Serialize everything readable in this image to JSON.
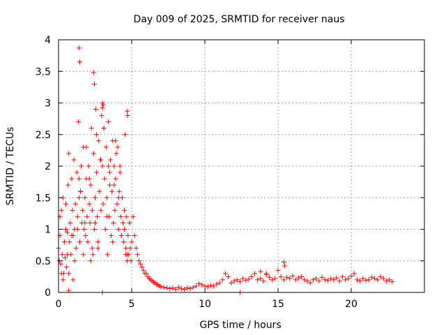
{
  "chart_data": {
    "type": "scatter",
    "title": "Day 009 of 2025, SRMTID for receiver naus",
    "xlabel": "GPS time / hours",
    "ylabel": "SRMTID / TECUs",
    "xlim": [
      0,
      25
    ],
    "ylim": [
      0,
      4
    ],
    "x_ticks": [
      0,
      5,
      10,
      15,
      20
    ],
    "x_tick_labels": [
      "0",
      "5",
      "10",
      "15",
      "20"
    ],
    "y_ticks": [
      0,
      0.5,
      1,
      1.5,
      2,
      2.5,
      3,
      3.5,
      4
    ],
    "y_tick_labels": [
      "0",
      "0.5",
      "1",
      "1.5",
      "2",
      "2.5",
      "3",
      "3.5",
      "4"
    ],
    "grid": true,
    "marker": "plus",
    "series": [
      {
        "name": "SRMTID",
        "color": "#ff0000",
        "x": [
          0.0,
          0.05,
          0.1,
          0.15,
          0.2,
          0.25,
          0.3,
          0.35,
          0.4,
          0.45,
          0.5,
          0.55,
          0.6,
          0.65,
          0.7,
          0.75,
          0.8,
          0.85,
          0.9,
          0.95,
          1.0,
          1.05,
          1.1,
          1.15,
          1.2,
          1.25,
          1.3,
          1.35,
          1.4,
          1.45,
          1.5,
          1.55,
          1.6,
          1.65,
          1.7,
          1.75,
          1.8,
          1.85,
          1.9,
          1.95,
          2.0,
          2.05,
          2.1,
          2.15,
          2.2,
          2.25,
          2.3,
          2.35,
          2.4,
          2.45,
          2.5,
          2.55,
          2.6,
          2.65,
          2.7,
          2.75,
          2.8,
          2.85,
          2.9,
          2.95,
          3.0,
          3.05,
          3.1,
          3.15,
          3.2,
          3.25,
          3.3,
          3.35,
          3.4,
          3.45,
          3.5,
          3.55,
          3.6,
          3.65,
          3.7,
          3.75,
          3.8,
          3.85,
          3.9,
          3.95,
          4.0,
          4.05,
          4.1,
          4.15,
          4.2,
          4.25,
          4.3,
          4.35,
          4.4,
          4.45,
          4.5,
          4.55,
          4.6,
          4.65,
          4.7,
          4.75,
          4.8,
          4.85,
          4.9,
          4.95,
          5.0,
          5.1,
          5.2,
          5.3,
          5.4,
          5.5,
          5.6,
          5.7,
          5.8,
          5.9,
          6.0,
          6.1,
          6.2,
          6.3,
          6.4,
          6.5,
          6.6,
          6.7,
          6.8,
          6.9,
          7.0,
          7.2,
          7.4,
          7.6,
          7.8,
          8.0,
          8.2,
          8.4,
          8.6,
          8.8,
          9.0,
          9.2,
          9.4,
          9.6,
          9.8,
          10.0,
          10.2,
          10.4,
          10.6,
          10.8,
          11.0,
          11.2,
          11.4,
          11.6,
          11.8,
          12.0,
          12.2,
          12.4,
          12.6,
          12.8,
          13.0,
          13.2,
          13.4,
          13.6,
          13.8,
          14.0,
          14.2,
          14.4,
          14.6,
          14.8,
          15.0,
          15.2,
          15.4,
          15.6,
          15.8,
          16.0,
          16.2,
          16.4,
          16.6,
          16.8,
          17.0,
          17.2,
          17.4,
          17.6,
          17.8,
          18.0,
          18.2,
          18.4,
          18.6,
          18.8,
          19.0,
          19.2,
          19.4,
          19.6,
          19.8,
          20.0,
          20.2,
          20.4,
          20.6,
          20.8,
          21.0,
          21.2,
          21.4,
          21.6,
          21.8,
          22.0,
          22.2,
          22.4,
          22.6,
          22.8,
          0.1,
          0.3,
          0.5,
          0.7,
          0.9,
          1.1,
          1.3,
          1.5,
          1.7,
          1.9,
          2.1,
          2.3,
          2.5,
          2.7,
          2.9,
          3.1,
          3.3,
          3.5,
          3.7,
          3.9,
          4.1,
          4.3,
          4.5,
          4.7,
          0.2,
          0.6,
          1.0,
          1.4,
          1.8,
          2.2,
          2.6,
          3.0,
          3.4,
          3.8,
          4.2,
          4.6,
          1.4,
          1.45,
          2.4,
          2.45,
          3.05,
          3.0,
          4.7,
          4.72,
          0.7,
          12.4,
          3.0,
          15.4,
          15.45,
          13.8,
          14.2
        ],
        "y": [
          0.7,
          0.5,
          0.9,
          0.45,
          1.3,
          0.6,
          1.5,
          0.3,
          0.8,
          0.55,
          1.0,
          0.4,
          0.95,
          1.7,
          2.2,
          0.8,
          1.1,
          0.6,
          1.8,
          1.3,
          0.9,
          2.1,
          1.0,
          1.4,
          0.7,
          1.9,
          1.2,
          2.7,
          1.5,
          0.8,
          1.6,
          2.0,
          1.1,
          1.3,
          2.3,
          1.0,
          1.5,
          0.9,
          1.8,
          1.2,
          0.8,
          2.0,
          1.4,
          1.1,
          1.7,
          2.6,
          1.3,
          0.6,
          2.2,
          1.0,
          1.5,
          2.9,
          1.9,
          1.2,
          0.7,
          2.4,
          1.6,
          2.1,
          1.3,
          2.8,
          2.0,
          1.4,
          2.6,
          1.8,
          1.0,
          2.3,
          1.5,
          0.6,
          2.0,
          1.2,
          1.7,
          2.1,
          0.9,
          1.6,
          2.4,
          1.1,
          2.0,
          1.3,
          1.8,
          2.2,
          1.4,
          2.3,
          1.0,
          1.6,
          1.9,
          1.2,
          0.9,
          1.5,
          1.1,
          0.8,
          1.0,
          2.5,
          0.7,
          1.2,
          0.5,
          0.9,
          0.6,
          1.1,
          0.7,
          0.5,
          0.8,
          1.2,
          0.9,
          0.7,
          0.6,
          0.5,
          0.45,
          0.4,
          0.35,
          0.3,
          0.3,
          0.25,
          0.22,
          0.2,
          0.18,
          0.16,
          0.15,
          0.13,
          0.12,
          0.1,
          0.09,
          0.08,
          0.07,
          0.06,
          0.07,
          0.05,
          0.08,
          0.06,
          0.05,
          0.07,
          0.06,
          0.08,
          0.1,
          0.14,
          0.12,
          0.1,
          0.09,
          0.11,
          0.1,
          0.13,
          0.15,
          0.2,
          0.3,
          0.25,
          0.15,
          0.18,
          0.2,
          0.17,
          0.22,
          0.19,
          0.21,
          0.25,
          0.3,
          0.2,
          0.22,
          0.18,
          0.28,
          0.24,
          0.2,
          0.22,
          0.35,
          0.25,
          0.2,
          0.24,
          0.22,
          0.26,
          0.2,
          0.23,
          0.25,
          0.2,
          0.18,
          0.15,
          0.2,
          0.22,
          0.18,
          0.24,
          0.2,
          0.19,
          0.22,
          0.2,
          0.23,
          0.18,
          0.25,
          0.2,
          0.22,
          0.26,
          0.3,
          0.2,
          0.18,
          0.22,
          0.19,
          0.2,
          0.24,
          0.22,
          0.2,
          0.25,
          0.22,
          0.18,
          0.2,
          0.17,
          1.2,
          0.2,
          1.4,
          0.3,
          0.9,
          0.5,
          1.0,
          1.6,
          0.6,
          2.3,
          1.8,
          0.7,
          1.1,
          0.8,
          2.1,
          2.6,
          1.2,
          1.9,
          0.8,
          2.4,
          1.5,
          0.9,
          1.3,
          0.6,
          0.3,
          0.6,
          0.2,
          1.8,
          1.1,
          0.5,
          2.5,
          3.0,
          2.7,
          1.7,
          2.0,
          0.6,
          3.87,
          3.65,
          3.48,
          3.3,
          2.97,
          2.92,
          2.87,
          2.8,
          0.03,
          0.0,
          0.0,
          0.48,
          0.42,
          0.33,
          0.3
        ]
      }
    ]
  }
}
